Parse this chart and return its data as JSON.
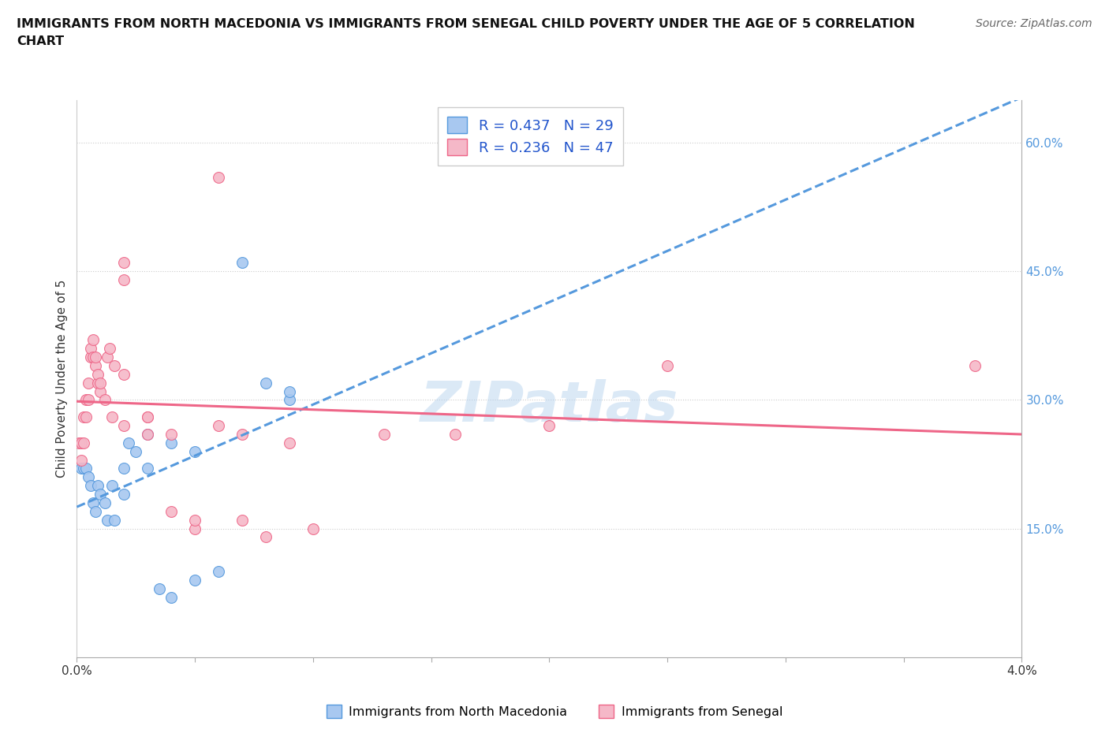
{
  "title": "IMMIGRANTS FROM NORTH MACEDONIA VS IMMIGRANTS FROM SENEGAL CHILD POVERTY UNDER THE AGE OF 5 CORRELATION\nCHART",
  "source": "Source: ZipAtlas.com",
  "ylabel": "Child Poverty Under the Age of 5",
  "y_ticks": [
    0.15,
    0.3,
    0.45,
    0.6
  ],
  "y_tick_labels": [
    "15.0%",
    "30.0%",
    "45.0%",
    "60.0%"
  ],
  "xlim": [
    0.0,
    0.04
  ],
  "ylim": [
    0.0,
    0.65
  ],
  "R_blue": 0.437,
  "N_blue": 29,
  "R_pink": 0.236,
  "N_pink": 47,
  "blue_color": "#a8c8f0",
  "pink_color": "#f5b8c8",
  "blue_line_color": "#5599dd",
  "pink_line_color": "#ee6688",
  "blue_scatter": [
    [
      0.0002,
      0.22
    ],
    [
      0.0003,
      0.22
    ],
    [
      0.0004,
      0.22
    ],
    [
      0.0005,
      0.21
    ],
    [
      0.0006,
      0.2
    ],
    [
      0.0007,
      0.18
    ],
    [
      0.0008,
      0.17
    ],
    [
      0.0009,
      0.2
    ],
    [
      0.001,
      0.19
    ],
    [
      0.0012,
      0.18
    ],
    [
      0.0013,
      0.16
    ],
    [
      0.0015,
      0.2
    ],
    [
      0.0016,
      0.16
    ],
    [
      0.002,
      0.19
    ],
    [
      0.002,
      0.22
    ],
    [
      0.0022,
      0.25
    ],
    [
      0.0025,
      0.24
    ],
    [
      0.003,
      0.22
    ],
    [
      0.003,
      0.26
    ],
    [
      0.0035,
      0.08
    ],
    [
      0.004,
      0.07
    ],
    [
      0.004,
      0.25
    ],
    [
      0.005,
      0.24
    ],
    [
      0.005,
      0.09
    ],
    [
      0.006,
      0.1
    ],
    [
      0.007,
      0.46
    ],
    [
      0.008,
      0.32
    ],
    [
      0.009,
      0.3
    ],
    [
      0.009,
      0.31
    ]
  ],
  "pink_scatter": [
    [
      0.0001,
      0.25
    ],
    [
      0.0002,
      0.23
    ],
    [
      0.0002,
      0.25
    ],
    [
      0.0003,
      0.25
    ],
    [
      0.0003,
      0.28
    ],
    [
      0.0004,
      0.28
    ],
    [
      0.0004,
      0.3
    ],
    [
      0.0005,
      0.32
    ],
    [
      0.0005,
      0.3
    ],
    [
      0.0006,
      0.35
    ],
    [
      0.0006,
      0.36
    ],
    [
      0.0007,
      0.37
    ],
    [
      0.0007,
      0.35
    ],
    [
      0.0008,
      0.34
    ],
    [
      0.0008,
      0.35
    ],
    [
      0.0009,
      0.32
    ],
    [
      0.0009,
      0.33
    ],
    [
      0.001,
      0.31
    ],
    [
      0.001,
      0.32
    ],
    [
      0.0012,
      0.3
    ],
    [
      0.0013,
      0.35
    ],
    [
      0.0014,
      0.36
    ],
    [
      0.0015,
      0.28
    ],
    [
      0.0016,
      0.34
    ],
    [
      0.002,
      0.27
    ],
    [
      0.002,
      0.33
    ],
    [
      0.002,
      0.44
    ],
    [
      0.002,
      0.46
    ],
    [
      0.003,
      0.28
    ],
    [
      0.003,
      0.28
    ],
    [
      0.003,
      0.26
    ],
    [
      0.004,
      0.26
    ],
    [
      0.004,
      0.17
    ],
    [
      0.005,
      0.15
    ],
    [
      0.005,
      0.16
    ],
    [
      0.006,
      0.56
    ],
    [
      0.006,
      0.27
    ],
    [
      0.007,
      0.26
    ],
    [
      0.007,
      0.16
    ],
    [
      0.008,
      0.14
    ],
    [
      0.009,
      0.25
    ],
    [
      0.01,
      0.15
    ],
    [
      0.013,
      0.26
    ],
    [
      0.016,
      0.26
    ],
    [
      0.02,
      0.27
    ],
    [
      0.025,
      0.34
    ],
    [
      0.038,
      0.34
    ]
  ],
  "watermark": "ZIPatlas",
  "legend_R_color": "#2255cc",
  "bg_color": "#ffffff"
}
